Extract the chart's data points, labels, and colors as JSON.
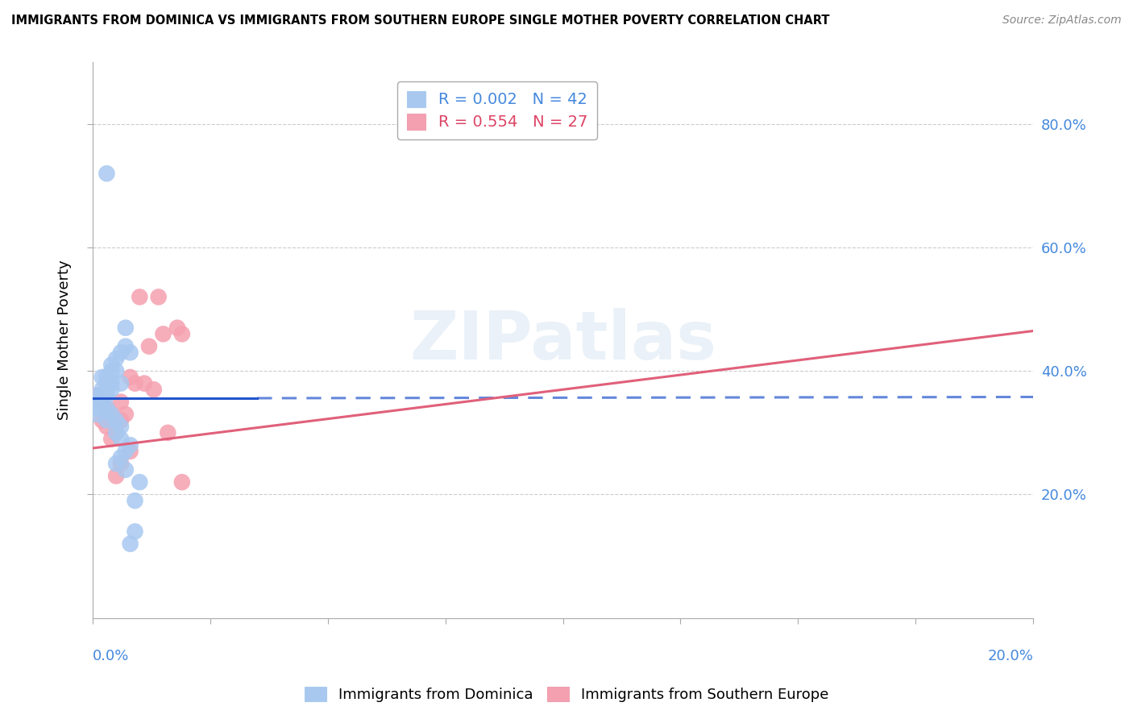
{
  "title": "IMMIGRANTS FROM DOMINICA VS IMMIGRANTS FROM SOUTHERN EUROPE SINGLE MOTHER POVERTY CORRELATION CHART",
  "source": "Source: ZipAtlas.com",
  "ylabel": "Single Mother Poverty",
  "legend1_R": "0.002",
  "legend1_N": "42",
  "legend2_R": "0.554",
  "legend2_N": "27",
  "blue_color": "#a8c8f0",
  "pink_color": "#f5a0b0",
  "blue_line_color": "#2255cc",
  "pink_line_color": "#e0607a",
  "blue_scatter": [
    [
      0.003,
      0.72
    ],
    [
      0.007,
      0.47
    ],
    [
      0.007,
      0.44
    ],
    [
      0.006,
      0.43
    ],
    [
      0.008,
      0.43
    ],
    [
      0.005,
      0.42
    ],
    [
      0.004,
      0.41
    ],
    [
      0.005,
      0.4
    ],
    [
      0.004,
      0.4
    ],
    [
      0.003,
      0.39
    ],
    [
      0.002,
      0.39
    ],
    [
      0.003,
      0.38
    ],
    [
      0.004,
      0.38
    ],
    [
      0.006,
      0.38
    ],
    [
      0.003,
      0.37
    ],
    [
      0.004,
      0.37
    ],
    [
      0.002,
      0.37
    ],
    [
      0.002,
      0.36
    ],
    [
      0.003,
      0.36
    ],
    [
      0.001,
      0.36
    ],
    [
      0.002,
      0.35
    ],
    [
      0.001,
      0.35
    ],
    [
      0.002,
      0.35
    ],
    [
      0.001,
      0.34
    ],
    [
      0.003,
      0.34
    ],
    [
      0.002,
      0.34
    ],
    [
      0.004,
      0.33
    ],
    [
      0.001,
      0.33
    ],
    [
      0.003,
      0.32
    ],
    [
      0.005,
      0.32
    ],
    [
      0.006,
      0.31
    ],
    [
      0.005,
      0.3
    ],
    [
      0.006,
      0.29
    ],
    [
      0.008,
      0.28
    ],
    [
      0.007,
      0.27
    ],
    [
      0.006,
      0.26
    ],
    [
      0.005,
      0.25
    ],
    [
      0.007,
      0.24
    ],
    [
      0.01,
      0.22
    ],
    [
      0.009,
      0.19
    ],
    [
      0.009,
      0.14
    ],
    [
      0.008,
      0.12
    ]
  ],
  "pink_scatter": [
    [
      0.001,
      0.36
    ],
    [
      0.002,
      0.35
    ],
    [
      0.003,
      0.34
    ],
    [
      0.004,
      0.33
    ],
    [
      0.002,
      0.32
    ],
    [
      0.003,
      0.31
    ],
    [
      0.005,
      0.3
    ],
    [
      0.004,
      0.29
    ],
    [
      0.001,
      0.36
    ],
    [
      0.006,
      0.32
    ],
    [
      0.007,
      0.33
    ],
    [
      0.006,
      0.35
    ],
    [
      0.008,
      0.39
    ],
    [
      0.009,
      0.38
    ],
    [
      0.008,
      0.27
    ],
    [
      0.006,
      0.25
    ],
    [
      0.005,
      0.23
    ],
    [
      0.01,
      0.52
    ],
    [
      0.011,
      0.38
    ],
    [
      0.012,
      0.44
    ],
    [
      0.013,
      0.37
    ],
    [
      0.014,
      0.52
    ],
    [
      0.015,
      0.46
    ],
    [
      0.016,
      0.3
    ],
    [
      0.018,
      0.47
    ],
    [
      0.019,
      0.46
    ],
    [
      0.019,
      0.22
    ]
  ],
  "xlim": [
    0.0,
    0.2
  ],
  "ylim": [
    0.0,
    0.9
  ],
  "blue_trendline_solid": [
    0.0,
    0.356,
    0.035,
    0.356
  ],
  "blue_trendline_dashed": [
    0.035,
    0.356,
    0.2,
    0.358
  ],
  "pink_trendline": [
    0.0,
    0.275,
    0.2,
    0.465
  ],
  "watermark": "ZIPatlas",
  "figsize": [
    14.06,
    8.92
  ],
  "dpi": 100
}
